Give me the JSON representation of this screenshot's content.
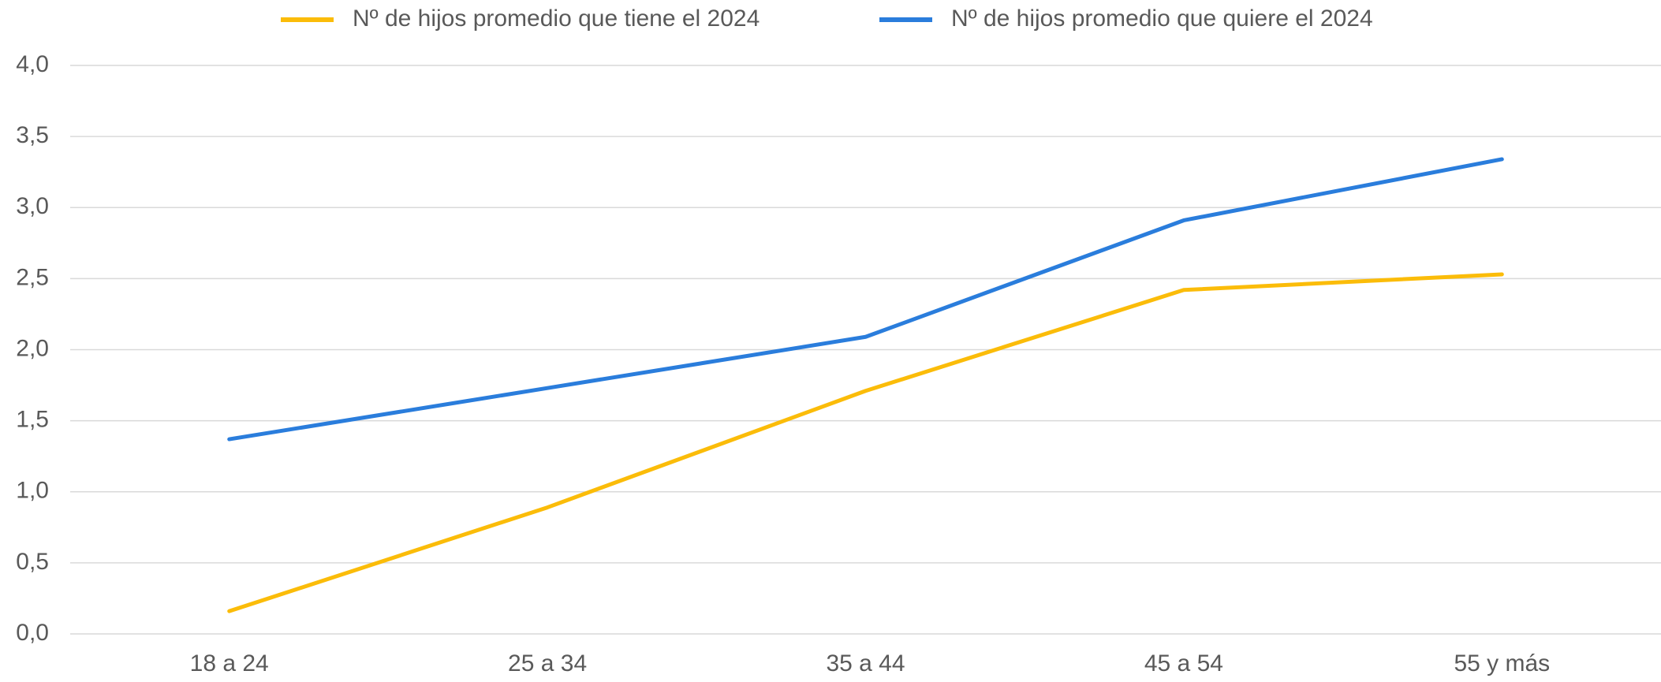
{
  "chart_data": {
    "type": "line",
    "categories": [
      "18 a 24",
      "25 a 34",
      "35 a 44",
      "45 a 54",
      "55 y más"
    ],
    "series": [
      {
        "name": "Nº de hijos promedio que tiene el 2024",
        "color": "#fbbc09",
        "values": [
          0.16,
          0.89,
          1.71,
          2.42,
          2.53
        ]
      },
      {
        "name": "Nº de hijos promedio que quiere el 2024",
        "color": "#2a7ddc",
        "values": [
          1.37,
          1.73,
          2.09,
          2.91,
          3.34
        ]
      }
    ],
    "ylim": [
      0,
      4
    ],
    "yticks": [
      {
        "value": 0,
        "label": "0,0"
      },
      {
        "value": 0.5,
        "label": "0,5"
      },
      {
        "value": 1,
        "label": "1,0"
      },
      {
        "value": 1.5,
        "label": "1,5"
      },
      {
        "value": 2,
        "label": "2,0"
      },
      {
        "value": 2.5,
        "label": "2,5"
      },
      {
        "value": 3,
        "label": "3,0"
      },
      {
        "value": 3.5,
        "label": "3,5"
      },
      {
        "value": 4,
        "label": "4,0"
      }
    ],
    "grid": true,
    "legend": "top"
  }
}
